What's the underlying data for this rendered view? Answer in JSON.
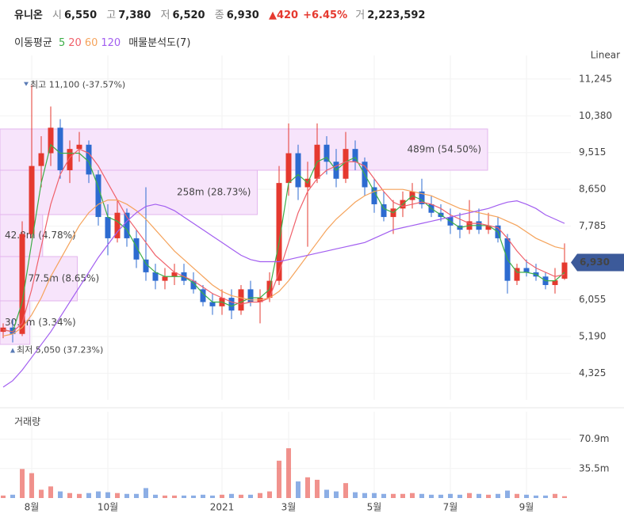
{
  "header": {
    "name": "유니온",
    "open_label": "시",
    "open": "6,550",
    "high_label": "고",
    "high": "7,380",
    "low_label": "저",
    "low": "6,520",
    "close_label": "종",
    "close": "6,930",
    "change": "▲420",
    "change_pct": "+6.45%",
    "volume_label": "거",
    "volume": "2,223,592"
  },
  "chart_data": {
    "type": "candlestick",
    "scale_label": "Linear",
    "ma_label": "이동평균",
    "profile_label": "매물분석도(7)",
    "volume_title": "거래량",
    "categories": [
      null,
      null,
      null,
      "8월",
      null,
      null,
      null,
      null,
      null,
      null,
      null,
      "10월",
      null,
      null,
      null,
      null,
      null,
      null,
      null,
      null,
      null,
      null,
      null,
      "2021",
      null,
      null,
      null,
      null,
      null,
      null,
      "3월",
      null,
      null,
      null,
      null,
      null,
      null,
      null,
      null,
      "5월",
      null,
      null,
      null,
      null,
      null,
      null,
      null,
      "7월",
      null,
      null,
      null,
      null,
      null,
      null,
      null,
      "9월",
      null,
      null,
      null,
      null
    ],
    "open": [
      5300,
      5400,
      5250,
      7600,
      9200,
      9500,
      10100,
      9100,
      9600,
      9700,
      9000,
      8000,
      7500,
      8100,
      7500,
      7000,
      6700,
      6500,
      6600,
      6700,
      6500,
      6300,
      6000,
      5900,
      6100,
      5800,
      6300,
      6000,
      6100,
      6500,
      8800,
      9500,
      8700,
      8900,
      9700,
      9300,
      8900,
      9600,
      9300,
      8700,
      8300,
      8000,
      8200,
      8400,
      8600,
      8300,
      8100,
      8000,
      7800,
      7700,
      7900,
      7700,
      7800,
      7500,
      6500,
      6800,
      6700,
      6600,
      6400,
      6550
    ],
    "high": [
      5500,
      5600,
      7900,
      11100,
      9900,
      10600,
      10300,
      9800,
      10000,
      9800,
      9100,
      8300,
      8400,
      8200,
      7700,
      8700,
      6900,
      6800,
      6900,
      6900,
      6700,
      6400,
      6200,
      6300,
      6300,
      6400,
      6500,
      6300,
      6700,
      9200,
      10200,
      9700,
      9300,
      10200,
      9900,
      9600,
      10000,
      9800,
      9400,
      8900,
      8600,
      8400,
      8600,
      8800,
      8900,
      8500,
      8300,
      8200,
      8100,
      8400,
      8200,
      8100,
      8000,
      7600,
      6900,
      7000,
      6900,
      6700,
      6800,
      7380
    ],
    "low": [
      5150,
      5050,
      5200,
      7500,
      8700,
      9200,
      8900,
      8800,
      9300,
      8800,
      7800,
      7100,
      7400,
      7300,
      6800,
      6500,
      6300,
      6300,
      6400,
      6400,
      6200,
      5900,
      5700,
      5700,
      5600,
      5700,
      5900,
      5500,
      6000,
      6400,
      8500,
      8400,
      7300,
      8800,
      9000,
      8700,
      8800,
      9100,
      8500,
      8100,
      7900,
      7600,
      8000,
      8200,
      8200,
      8000,
      7900,
      7600,
      7500,
      7600,
      7600,
      7600,
      7400,
      6200,
      6400,
      6600,
      6500,
      6300,
      6200,
      6520
    ],
    "close": [
      5400,
      5250,
      7600,
      9200,
      9500,
      10100,
      9100,
      9600,
      9700,
      9000,
      8000,
      7500,
      8100,
      7500,
      7000,
      6700,
      6500,
      6600,
      6700,
      6500,
      6300,
      6000,
      5900,
      6100,
      5800,
      6300,
      6000,
      6100,
      6500,
      8800,
      9500,
      8700,
      8900,
      9700,
      9300,
      8900,
      9600,
      9300,
      8700,
      8300,
      8000,
      8200,
      8400,
      8600,
      8300,
      8100,
      8000,
      7800,
      7700,
      7900,
      7700,
      7800,
      7500,
      6500,
      6800,
      6700,
      6600,
      6400,
      6510,
      6930
    ],
    "volume": [
      3000000,
      4000000,
      35000000,
      30000000,
      10000000,
      14000000,
      8000000,
      6000000,
      5000000,
      6000000,
      8000000,
      7000000,
      6000000,
      5000000,
      5000000,
      12000000,
      4000000,
      3000000,
      3000000,
      3000000,
      3000000,
      4000000,
      3000000,
      4000000,
      5000000,
      4000000,
      4000000,
      6000000,
      8000000,
      45000000,
      60000000,
      20000000,
      25000000,
      22000000,
      10000000,
      8000000,
      18000000,
      7000000,
      6000000,
      6000000,
      5000000,
      5000000,
      5000000,
      6000000,
      5000000,
      4000000,
      4000000,
      5000000,
      4000000,
      6000000,
      5000000,
      4000000,
      5000000,
      9000000,
      5000000,
      4000000,
      3000000,
      3000000,
      5000000,
      2223592
    ],
    "up_color": "#e5392f",
    "down_color": "#2d6bd0",
    "ylim": [
      3700,
      11800
    ],
    "yticks": [
      {
        "value": 4325,
        "label": "4,325"
      },
      {
        "value": 5190,
        "label": "5,190"
      },
      {
        "value": 6055,
        "label": "6,055"
      },
      {
        "value": 7785,
        "label": "7,785"
      },
      {
        "value": 8650,
        "label": "8,650"
      },
      {
        "value": 9515,
        "label": "9,515"
      },
      {
        "value": 10380,
        "label": "10,380"
      },
      {
        "value": 11245,
        "label": "11,245"
      }
    ],
    "volume_ylim": [
      0,
      104000000
    ],
    "volume_yticks": [
      {
        "value": 35500000,
        "label": "35.5m"
      },
      {
        "value": 70900000,
        "label": "70.9m"
      }
    ],
    "series": [
      {
        "name": "5",
        "color": "#3cae48",
        "values": [
          5350,
          5300,
          6000,
          7400,
          8800,
          9700,
          9500,
          9500,
          9500,
          9300,
          8700,
          8000,
          7900,
          7700,
          7300,
          6900,
          6700,
          6600,
          6600,
          6600,
          6450,
          6200,
          6000,
          6000,
          5900,
          6000,
          6100,
          6100,
          6300,
          7400,
          8800,
          9000,
          8800,
          9300,
          9400,
          9100,
          9300,
          9400,
          9000,
          8600,
          8200,
          8100,
          8300,
          8500,
          8400,
          8200,
          8050,
          7900,
          7750,
          7800,
          7800,
          7800,
          7650,
          7000,
          6700,
          6700,
          6650,
          6500,
          6500,
          6700
        ]
      },
      {
        "name": "20",
        "color": "#f0606a",
        "values": [
          5350,
          5300,
          5500,
          6300,
          7300,
          8300,
          9000,
          9400,
          9600,
          9500,
          9200,
          8800,
          8400,
          8000,
          7700,
          7400,
          7100,
          6900,
          6700,
          6600,
          6500,
          6350,
          6200,
          6100,
          6000,
          5950,
          6000,
          6000,
          6100,
          6700,
          7400,
          8100,
          8600,
          8900,
          9100,
          9200,
          9300,
          9300,
          9200,
          8900,
          8600,
          8350,
          8250,
          8300,
          8350,
          8300,
          8200,
          8050,
          7950,
          7850,
          7850,
          7800,
          7750,
          7500,
          7200,
          6950,
          6800,
          6700,
          6600,
          6650
        ]
      },
      {
        "name": "60",
        "color": "#f5a35b",
        "values": [
          5200,
          5250,
          5400,
          5700,
          6100,
          6600,
          7000,
          7400,
          7800,
          8100,
          8300,
          8400,
          8400,
          8300,
          8150,
          7950,
          7700,
          7450,
          7200,
          7000,
          6800,
          6600,
          6400,
          6250,
          6150,
          6100,
          6050,
          6050,
          6100,
          6250,
          6500,
          6800,
          7100,
          7400,
          7700,
          7950,
          8150,
          8350,
          8500,
          8600,
          8650,
          8650,
          8650,
          8600,
          8550,
          8500,
          8400,
          8300,
          8200,
          8150,
          8100,
          8050,
          8000,
          7900,
          7800,
          7650,
          7500,
          7400,
          7300,
          7250
        ]
      },
      {
        "name": "120",
        "color": "#a25ef0",
        "values": [
          4000,
          4150,
          4400,
          4700,
          5000,
          5300,
          5650,
          6000,
          6350,
          6700,
          7050,
          7350,
          7650,
          7900,
          8100,
          8250,
          8300,
          8250,
          8150,
          8000,
          7850,
          7700,
          7550,
          7400,
          7250,
          7100,
          7000,
          6950,
          6950,
          6950,
          7000,
          7050,
          7100,
          7150,
          7200,
          7250,
          7300,
          7350,
          7400,
          7500,
          7600,
          7700,
          7750,
          7800,
          7850,
          7900,
          7950,
          8000,
          8050,
          8100,
          8150,
          8200,
          8280,
          8350,
          8380,
          8300,
          8200,
          8050,
          7950,
          7850
        ]
      }
    ],
    "volume_profile": [
      {
        "low": 9100,
        "high": 10070,
        "volume": 489000000,
        "label": "489m (54.50%)"
      },
      {
        "low": 8057,
        "high": 9100,
        "volume": 258000000,
        "label": "258m (28.73%)"
      },
      {
        "low": 7070,
        "high": 8057,
        "volume": 42800000,
        "label": "42.8m (4.78%)"
      },
      {
        "low": 6028,
        "high": 7070,
        "volume": 77500000,
        "label": "77.5m (8.65%)"
      },
      {
        "low": 5004,
        "high": 6028,
        "volume": 30000000,
        "label": "30.0m (3.34%)"
      }
    ],
    "profile_color": "#f7e4fb",
    "profile_border": "#e3b6ee",
    "max_marker": {
      "value": 11100,
      "label": "최고 11,100 (-37.57%)"
    },
    "min_marker": {
      "value": 5050,
      "label": "최저 5,050 (37.23%)"
    },
    "marker_color": "#5a7bb5",
    "last_price": {
      "value": 6930,
      "label": "6,930"
    },
    "last_color": "#3c5a9a",
    "grid": true
  }
}
